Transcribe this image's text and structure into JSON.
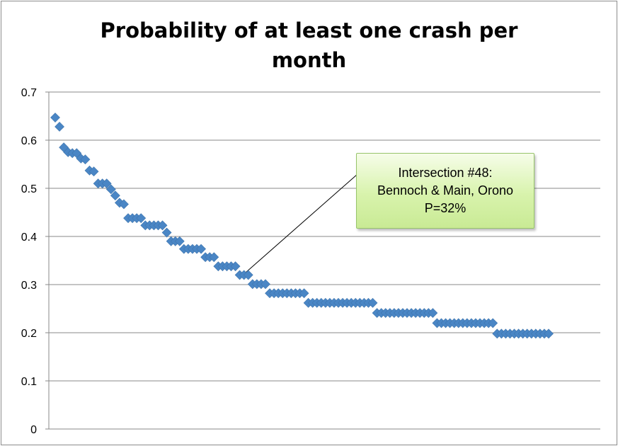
{
  "chart_data": {
    "type": "scatter",
    "title_lines": [
      "Probability of at least one crash per",
      "month"
    ],
    "xlabel": "",
    "ylabel": "",
    "ylim": [
      0,
      0.7
    ],
    "yticks": [
      "0",
      "0.1",
      "0.2",
      "0.3",
      "0.4",
      "0.5",
      "0.6",
      "0.7"
    ],
    "grid": true,
    "legend": "none",
    "marker": "diamond",
    "color": "#4a86c5",
    "series": [
      {
        "values": [
          0.647,
          0.628,
          0.585,
          0.575,
          0.573,
          0.573,
          0.562,
          0.56,
          0.537,
          0.535,
          0.51,
          0.51,
          0.51,
          0.498,
          0.485,
          0.47,
          0.467,
          0.438,
          0.438,
          0.438,
          0.438,
          0.423,
          0.423,
          0.423,
          0.423,
          0.423,
          0.408,
          0.39,
          0.39,
          0.39,
          0.374,
          0.374,
          0.374,
          0.374,
          0.374,
          0.357,
          0.357,
          0.357,
          0.338,
          0.338,
          0.338,
          0.338,
          0.338,
          0.32,
          0.32,
          0.32,
          0.301,
          0.301,
          0.301,
          0.301,
          0.282,
          0.282,
          0.282,
          0.282,
          0.282,
          0.282,
          0.282,
          0.282,
          0.282,
          0.262,
          0.262,
          0.262,
          0.262,
          0.262,
          0.262,
          0.262,
          0.262,
          0.262,
          0.262,
          0.262,
          0.262,
          0.262,
          0.262,
          0.262,
          0.262,
          0.241,
          0.241,
          0.241,
          0.241,
          0.241,
          0.241,
          0.241,
          0.241,
          0.241,
          0.241,
          0.241,
          0.241,
          0.241,
          0.241,
          0.22,
          0.22,
          0.22,
          0.22,
          0.22,
          0.22,
          0.22,
          0.22,
          0.22,
          0.22,
          0.22,
          0.22,
          0.22,
          0.22,
          0.198,
          0.198,
          0.198,
          0.198,
          0.198,
          0.198,
          0.198,
          0.198,
          0.198,
          0.198,
          0.198,
          0.198,
          0.198
        ]
      }
    ],
    "annotation": {
      "lines": [
        "Intersection #48:",
        "Bennoch & Main, Orono",
        "P=32%"
      ],
      "point_index": 44
    }
  }
}
